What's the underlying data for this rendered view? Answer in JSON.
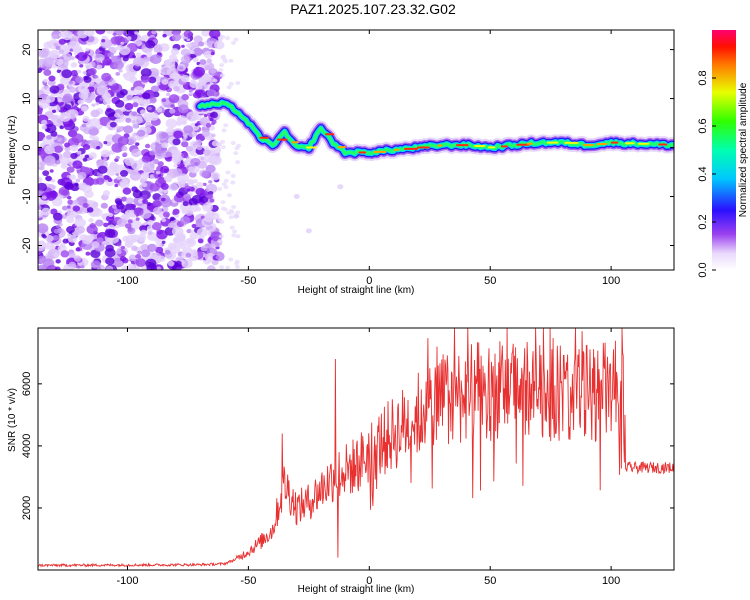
{
  "title": "PAZ1.2025.107.23.32.G02",
  "chart_data": [
    {
      "type": "heatmap",
      "xlabel": "Height of straight line (km)",
      "ylabel": "Frequency (Hz)",
      "xlim": [
        -137,
        126
      ],
      "ylim": [
        -25,
        24
      ],
      "xticks": [
        -100,
        -50,
        0,
        50,
        100
      ],
      "yticks": [
        -20,
        -10,
        0,
        10,
        20
      ],
      "colorbar": {
        "label": "Normalized spectral amplitude",
        "range": [
          0,
          1
        ],
        "ticks": [
          0.0,
          0.2,
          0.4,
          0.6,
          0.8
        ]
      },
      "ridge": [
        {
          "x": -137,
          "y": null
        },
        {
          "x": -70,
          "y": 8.5
        },
        {
          "x": -60,
          "y": 9
        },
        {
          "x": -55,
          "y": 7.5
        },
        {
          "x": -50,
          "y": 5
        },
        {
          "x": -45,
          "y": 2
        },
        {
          "x": -40,
          "y": 0.5
        },
        {
          "x": -35,
          "y": 3
        },
        {
          "x": -30,
          "y": 0
        },
        {
          "x": -25,
          "y": 0
        },
        {
          "x": -20,
          "y": 4
        },
        {
          "x": -15,
          "y": 1
        },
        {
          "x": -10,
          "y": -1
        },
        {
          "x": -5,
          "y": -1
        },
        {
          "x": 0,
          "y": -1
        },
        {
          "x": 10,
          "y": -0.5
        },
        {
          "x": 20,
          "y": 0
        },
        {
          "x": 30,
          "y": 0.5
        },
        {
          "x": 40,
          "y": 0.5
        },
        {
          "x": 50,
          "y": 0
        },
        {
          "x": 60,
          "y": 0.5
        },
        {
          "x": 70,
          "y": 1
        },
        {
          "x": 80,
          "y": 1
        },
        {
          "x": 90,
          "y": 0.5
        },
        {
          "x": 100,
          "y": 1
        },
        {
          "x": 110,
          "y": 0.8
        },
        {
          "x": 126,
          "y": 0.5
        }
      ],
      "noise_region_x": [
        -137,
        -62
      ]
    },
    {
      "type": "line",
      "xlabel": "Height of straight line (km)",
      "ylabel": "SNR (10 * v/v)",
      "xlim": [
        -137,
        126
      ],
      "ylim": [
        0,
        7800
      ],
      "xticks": [
        -100,
        -50,
        0,
        50,
        100
      ],
      "yticks": [
        2000,
        4000,
        6000
      ],
      "series": [
        {
          "color": "#e83030",
          "envelope": [
            {
              "x": -137,
              "y": 150
            },
            {
              "x": -100,
              "y": 160
            },
            {
              "x": -70,
              "y": 170
            },
            {
              "x": -60,
              "y": 200
            },
            {
              "x": -55,
              "y": 350
            },
            {
              "x": -50,
              "y": 600
            },
            {
              "x": -45,
              "y": 900
            },
            {
              "x": -40,
              "y": 1300
            },
            {
              "x": -35,
              "y": 2800
            },
            {
              "x": -30,
              "y": 2000
            },
            {
              "x": -25,
              "y": 2200
            },
            {
              "x": -20,
              "y": 2600
            },
            {
              "x": -15,
              "y": 3000
            },
            {
              "x": -10,
              "y": 3200
            },
            {
              "x": -5,
              "y": 3400
            },
            {
              "x": 0,
              "y": 3800
            },
            {
              "x": 10,
              "y": 4400
            },
            {
              "x": 20,
              "y": 5000
            },
            {
              "x": 30,
              "y": 5500
            },
            {
              "x": 40,
              "y": 5700
            },
            {
              "x": 50,
              "y": 5800
            },
            {
              "x": 60,
              "y": 5800
            },
            {
              "x": 70,
              "y": 5800
            },
            {
              "x": 80,
              "y": 5700
            },
            {
              "x": 90,
              "y": 5700
            },
            {
              "x": 100,
              "y": 5800
            },
            {
              "x": 105,
              "y": 5800
            },
            {
              "x": 106,
              "y": 3300
            },
            {
              "x": 115,
              "y": 3300
            },
            {
              "x": 126,
              "y": 3300
            }
          ],
          "spikes": [
            {
              "x": -36,
              "y": 4400
            },
            {
              "x": -14,
              "y": 6800
            },
            {
              "x": -13,
              "y": 400
            },
            {
              "x": 57,
              "y": 7800
            },
            {
              "x": 88,
              "y": 7700
            },
            {
              "x": 28,
              "y": 7200
            }
          ]
        }
      ]
    }
  ]
}
